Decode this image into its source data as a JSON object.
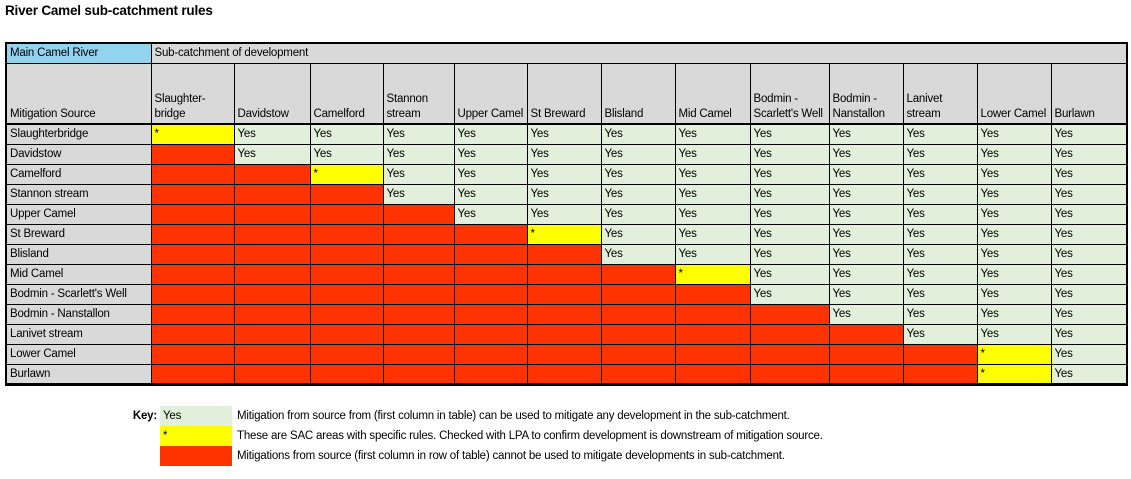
{
  "title": "River Camel sub-catchment rules",
  "table": {
    "corner_header": "Main Camel River",
    "span_header": "Sub-catchment of development",
    "mitigation_source_label": "Mitigation Source",
    "columns": [
      "Slaughter-bridge",
      "Davidstow",
      "Camelford",
      "Stannon stream",
      "Upper Camel",
      "St Breward",
      "Blisland",
      "Mid Camel",
      "Bodmin - Scarlett's Well",
      "Bodmin - Nanstallon",
      "Lanivet stream",
      "Lower Camel",
      "Burlawn"
    ],
    "cell_text": {
      "yes": "Yes",
      "star": "*",
      "no": ""
    },
    "rows": [
      {
        "label": "Slaughterbridge",
        "cells": [
          "star",
          "yes",
          "yes",
          "yes",
          "yes",
          "yes",
          "yes",
          "yes",
          "yes",
          "yes",
          "yes",
          "yes",
          "yes"
        ]
      },
      {
        "label": "Davidstow",
        "cells": [
          "no",
          "yes",
          "yes",
          "yes",
          "yes",
          "yes",
          "yes",
          "yes",
          "yes",
          "yes",
          "yes",
          "yes",
          "yes"
        ]
      },
      {
        "label": "Camelford",
        "cells": [
          "no",
          "no",
          "star",
          "yes",
          "yes",
          "yes",
          "yes",
          "yes",
          "yes",
          "yes",
          "yes",
          "yes",
          "yes"
        ]
      },
      {
        "label": "Stannon stream",
        "cells": [
          "no",
          "no",
          "no",
          "yes",
          "yes",
          "yes",
          "yes",
          "yes",
          "yes",
          "yes",
          "yes",
          "yes",
          "yes"
        ]
      },
      {
        "label": "Upper Camel",
        "cells": [
          "no",
          "no",
          "no",
          "no",
          "yes",
          "yes",
          "yes",
          "yes",
          "yes",
          "yes",
          "yes",
          "yes",
          "yes"
        ]
      },
      {
        "label": "St Breward",
        "cells": [
          "no",
          "no",
          "no",
          "no",
          "no",
          "star",
          "yes",
          "yes",
          "yes",
          "yes",
          "yes",
          "yes",
          "yes"
        ]
      },
      {
        "label": "Blisland",
        "cells": [
          "no",
          "no",
          "no",
          "no",
          "no",
          "no",
          "yes",
          "yes",
          "yes",
          "yes",
          "yes",
          "yes",
          "yes"
        ]
      },
      {
        "label": "Mid Camel",
        "cells": [
          "no",
          "no",
          "no",
          "no",
          "no",
          "no",
          "no",
          "star",
          "yes",
          "yes",
          "yes",
          "yes",
          "yes"
        ]
      },
      {
        "label": "Bodmin - Scarlett's Well",
        "cells": [
          "no",
          "no",
          "no",
          "no",
          "no",
          "no",
          "no",
          "no",
          "yes",
          "yes",
          "yes",
          "yes",
          "yes"
        ]
      },
      {
        "label": "Bodmin - Nanstallon",
        "cells": [
          "no",
          "no",
          "no",
          "no",
          "no",
          "no",
          "no",
          "no",
          "no",
          "yes",
          "yes",
          "yes",
          "yes"
        ]
      },
      {
        "label": "Lanivet stream",
        "cells": [
          "no",
          "no",
          "no",
          "no",
          "no",
          "no",
          "no",
          "no",
          "no",
          "no",
          "yes",
          "yes",
          "yes"
        ]
      },
      {
        "label": "Lower Camel",
        "cells": [
          "no",
          "no",
          "no",
          "no",
          "no",
          "no",
          "no",
          "no",
          "no",
          "no",
          "no",
          "star",
          "yes"
        ]
      },
      {
        "label": "Burlawn",
        "cells": [
          "no",
          "no",
          "no",
          "no",
          "no",
          "no",
          "no",
          "no",
          "no",
          "no",
          "no",
          "star",
          "yes"
        ]
      }
    ]
  },
  "legend": {
    "label": "Key:",
    "items": [
      {
        "state": "yes",
        "swatch_text": "Yes",
        "description": "Mitigation from source from (first column in table) can be used to mitigate any development in the sub-catchment."
      },
      {
        "state": "star",
        "swatch_text": "*",
        "description": "These are SAC areas with specific rules. Checked with LPA to confirm development is downstream of mitigation source."
      },
      {
        "state": "no",
        "swatch_text": "",
        "description": "Mitigations from source (first column in row of table) cannot be used to mitigate developments in sub-catchment."
      }
    ]
  },
  "colors": {
    "yes_green": "#E2EFDA",
    "star_yellow": "#FFFF00",
    "no_red": "#FF3300",
    "header_gray": "#D9D9D9",
    "corner_blue": "#92D3EE",
    "border_black": "#000000"
  }
}
